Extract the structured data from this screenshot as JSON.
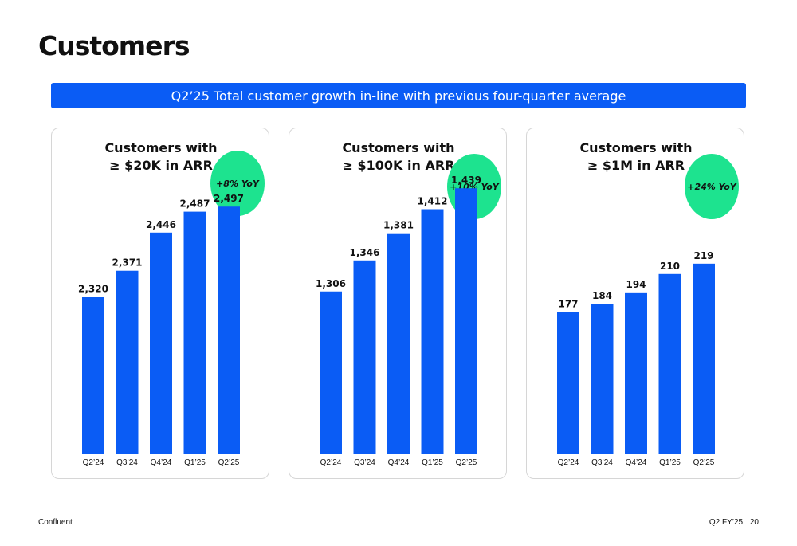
{
  "page": {
    "title": "Customers",
    "banner": "Q2’25 Total customer growth in-line with previous four-quarter average",
    "footer": {
      "company": "Confluent",
      "period": "Q2 FY’25",
      "page_number": "20"
    }
  },
  "colors": {
    "bar": "#0a5cf5",
    "badge": "#1de38f",
    "banner": "#0a5cf5"
  },
  "panels": [
    {
      "title_line1": "Customers with",
      "title_line2": "≥ $20K in ARR",
      "yoy": "+8% YoY"
    },
    {
      "title_line1": "Customers with",
      "title_line2": "≥ $100K in ARR",
      "yoy": "+10% YoY"
    },
    {
      "title_line1": "Customers with",
      "title_line2": "≥ $1M in ARR",
      "yoy": "+24% YoY"
    }
  ],
  "chart_data": [
    {
      "type": "bar",
      "title": "Customers with ≥ $20K in ARR",
      "categories": [
        "Q2’24",
        "Q3’24",
        "Q4’24",
        "Q1’25",
        "Q2’25"
      ],
      "values": [
        2320,
        2371,
        2446,
        2487,
        2497
      ],
      "labels": [
        "2,320",
        "2,371",
        "2,446",
        "2,487",
        "2,497"
      ],
      "annotation": "+8% YoY",
      "grid": false
    },
    {
      "type": "bar",
      "title": "Customers with ≥ $100K in ARR",
      "categories": [
        "Q2’24",
        "Q3’24",
        "Q4’24",
        "Q1’25",
        "Q2’25"
      ],
      "values": [
        1306,
        1346,
        1381,
        1412,
        1439
      ],
      "labels": [
        "1,306",
        "1,346",
        "1,381",
        "1,412",
        "1,439"
      ],
      "annotation": "+10% YoY",
      "grid": false
    },
    {
      "type": "bar",
      "title": "Customers with ≥ $1M in ARR",
      "categories": [
        "Q2’24",
        "Q3’24",
        "Q4’24",
        "Q1’25",
        "Q2’25"
      ],
      "values": [
        177,
        184,
        194,
        210,
        219
      ],
      "labels": [
        "177",
        "184",
        "194",
        "210",
        "219"
      ],
      "annotation": "+24% YoY",
      "grid": false
    }
  ]
}
